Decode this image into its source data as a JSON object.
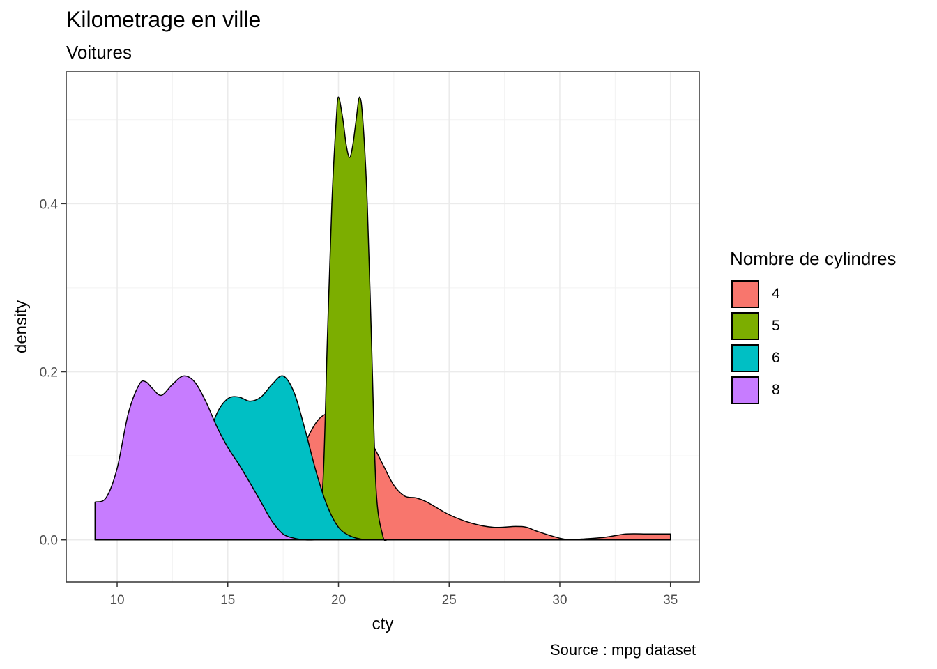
{
  "title": "Kilometrage en ville",
  "subtitle": "Voitures",
  "caption": "Source : mpg dataset",
  "legend": {
    "title": "Nombre de cylindres",
    "items": [
      {
        "label": "4",
        "color": "#F8766D"
      },
      {
        "label": "5",
        "color": "#7CAE00"
      },
      {
        "label": "6",
        "color": "#00BFC4"
      },
      {
        "label": "8",
        "color": "#C77CFF"
      }
    ]
  },
  "chart_data": {
    "type": "area",
    "title": "Kilometrage en ville",
    "subtitle": "Voitures",
    "xlabel": "cty",
    "ylabel": "density",
    "xlim": [
      7.7,
      36.3
    ],
    "ylim": [
      -0.05,
      0.557
    ],
    "xticks": [
      10,
      15,
      20,
      25,
      30,
      35
    ],
    "xtick_labels": [
      "10",
      "15",
      "20",
      "25",
      "30",
      "35"
    ],
    "yticks": [
      0.0,
      0.2,
      0.4
    ],
    "ytick_labels": [
      "0.0",
      "0.2",
      "0.4"
    ],
    "grid": true,
    "legend_position": "right",
    "series": [
      {
        "name": "4",
        "color": "#F8766D",
        "x": [
          15,
          16,
          17,
          17.8,
          18.4,
          19,
          19.5,
          20,
          20.5,
          21,
          21.5,
          22,
          22.5,
          23,
          23.5,
          24,
          25,
          26,
          27,
          28,
          28.5,
          29,
          30,
          30.5,
          31,
          32,
          33,
          34,
          35
        ],
        "y": [
          0.0,
          0.003,
          0.02,
          0.07,
          0.11,
          0.14,
          0.15,
          0.145,
          0.135,
          0.13,
          0.115,
          0.09,
          0.065,
          0.052,
          0.05,
          0.045,
          0.03,
          0.02,
          0.015,
          0.016,
          0.015,
          0.01,
          0.002,
          0.0,
          0.001,
          0.003,
          0.007,
          0.007,
          0.007
        ]
      },
      {
        "name": "5",
        "color": "#7CAE00",
        "x": [
          18.5,
          19.0,
          19.3,
          19.5,
          19.7,
          19.9,
          20.0,
          20.2,
          20.35,
          20.5,
          20.65,
          20.8,
          20.95,
          21.1,
          21.3,
          21.5,
          21.7,
          22.0,
          22.2
        ],
        "y": [
          0.0,
          0.01,
          0.07,
          0.24,
          0.4,
          0.5,
          0.527,
          0.5,
          0.47,
          0.455,
          0.47,
          0.5,
          0.527,
          0.5,
          0.4,
          0.23,
          0.06,
          0.005,
          0.0
        ]
      },
      {
        "name": "6",
        "color": "#00BFC4",
        "x": [
          12.5,
          13,
          13.5,
          14,
          14.5,
          15,
          15.5,
          16,
          16.5,
          17,
          17.5,
          18,
          18.5,
          19,
          19.5,
          20,
          20.5,
          21,
          21.5
        ],
        "y": [
          0.0,
          0.01,
          0.05,
          0.11,
          0.15,
          0.168,
          0.17,
          0.165,
          0.17,
          0.185,
          0.195,
          0.175,
          0.13,
          0.08,
          0.04,
          0.015,
          0.005,
          0.001,
          0.0
        ]
      },
      {
        "name": "8",
        "color": "#C77CFF",
        "x": [
          9,
          9.5,
          10,
          10.5,
          11,
          11.3,
          11.6,
          12,
          12.5,
          13,
          13.5,
          14,
          14.5,
          15,
          15.5,
          16,
          16.5,
          17,
          17.5,
          18,
          18.5,
          19
        ],
        "y": [
          0.045,
          0.05,
          0.085,
          0.15,
          0.185,
          0.188,
          0.18,
          0.172,
          0.185,
          0.195,
          0.188,
          0.165,
          0.135,
          0.11,
          0.09,
          0.068,
          0.045,
          0.022,
          0.007,
          0.002,
          0.0,
          0.0
        ]
      }
    ]
  }
}
